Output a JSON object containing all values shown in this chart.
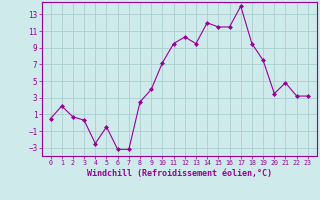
{
  "x": [
    0,
    1,
    2,
    3,
    4,
    5,
    6,
    7,
    8,
    9,
    10,
    11,
    12,
    13,
    14,
    15,
    16,
    17,
    18,
    19,
    20,
    21,
    22,
    23
  ],
  "y": [
    0.5,
    2.0,
    0.7,
    0.3,
    -2.5,
    -0.5,
    -3.2,
    -3.2,
    2.5,
    4.0,
    7.2,
    9.5,
    10.3,
    9.5,
    12.0,
    11.5,
    11.5,
    14.0,
    9.5,
    7.5,
    3.5,
    4.8,
    3.2,
    3.2
  ],
  "line_color": "#990099",
  "marker": "D",
  "marker_size": 2,
  "bg_color": "#ceeaea",
  "grid_color": "#aacece",
  "axis_color": "#990099",
  "tick_color": "#990099",
  "xlabel": "Windchill (Refroidissement éolien,°C)",
  "ylabel": "",
  "ylim": [
    -4,
    14.5
  ],
  "yticks": [
    -3,
    -1,
    1,
    3,
    5,
    7,
    9,
    11,
    13
  ],
  "xticks": [
    0,
    1,
    2,
    3,
    4,
    5,
    6,
    7,
    8,
    9,
    10,
    11,
    12,
    13,
    14,
    15,
    16,
    17,
    18,
    19,
    20,
    21,
    22,
    23
  ],
  "font_family": "monospace"
}
